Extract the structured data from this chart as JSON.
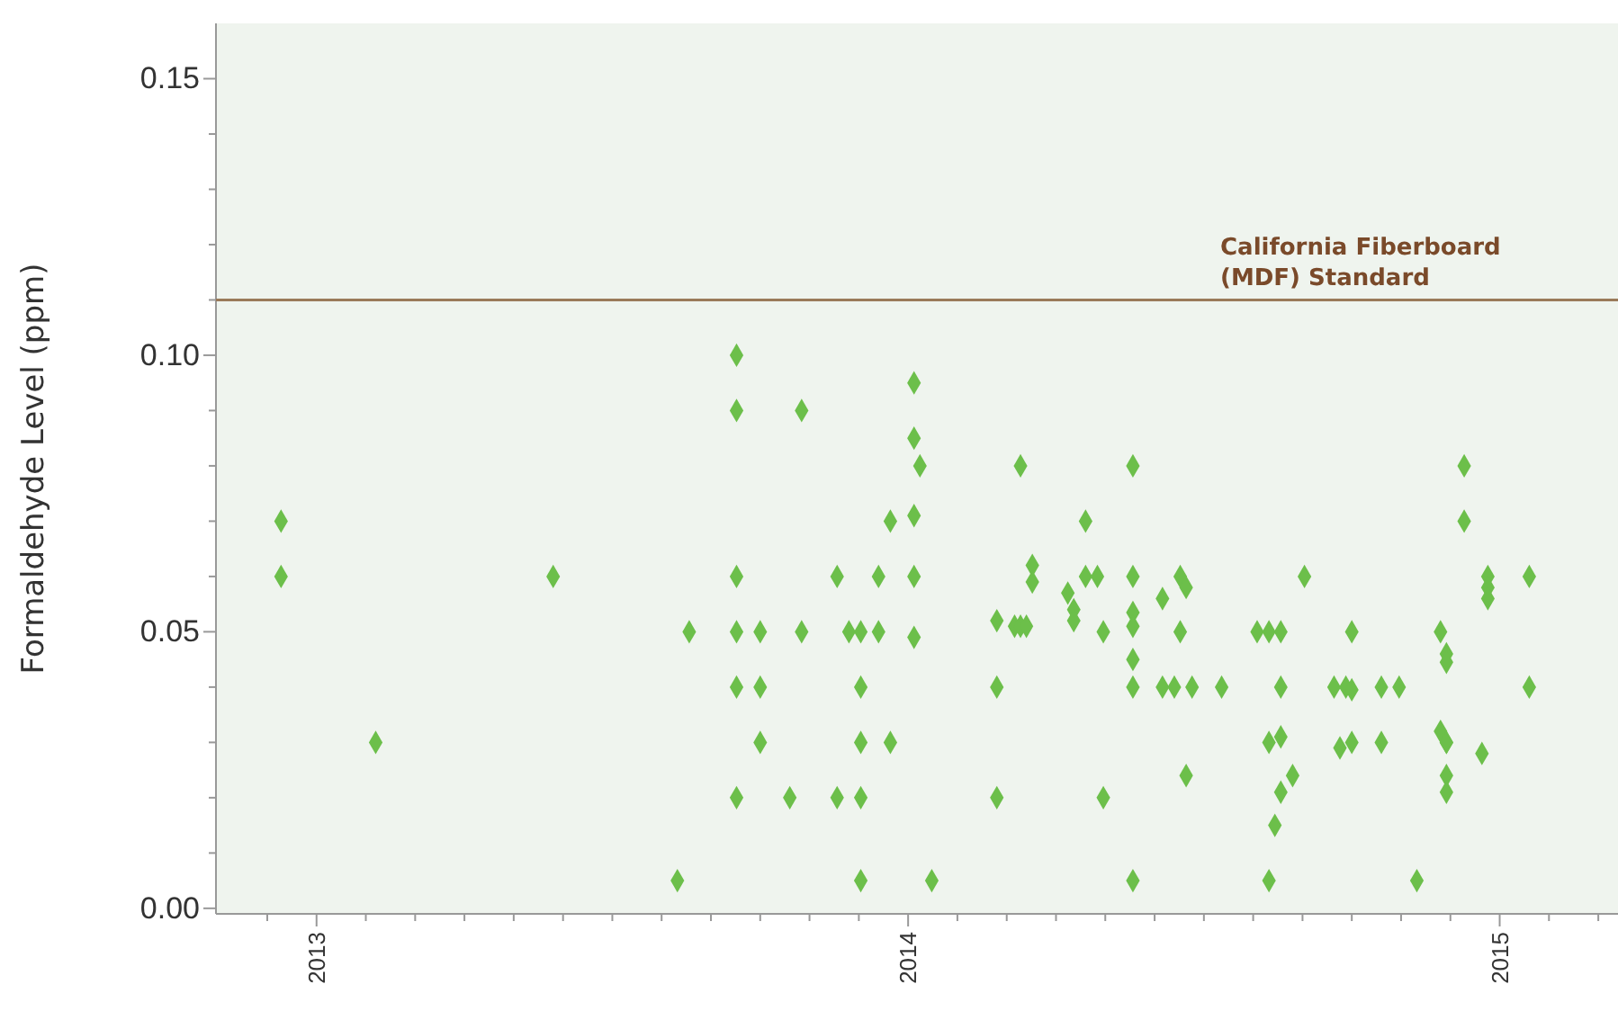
{
  "chart_data": {
    "type": "scatter",
    "ylabel": "Formaldehyde Level (ppm)",
    "marker": "diamond",
    "xlim": [
      2012.83,
      2015.2
    ],
    "ylim": [
      -0.001,
      0.16
    ],
    "xticks": [
      {
        "value": 2012.9167,
        "label": null
      },
      2013,
      {
        "value": 2013.0833,
        "label": null
      },
      {
        "value": 2013.1667,
        "label": null
      },
      {
        "value": 2013.25,
        "label": null
      },
      {
        "value": 2013.3333,
        "label": null
      },
      {
        "value": 2013.4167,
        "label": null
      },
      {
        "value": 2013.5,
        "label": null
      },
      {
        "value": 2013.5833,
        "label": null
      },
      {
        "value": 2013.6667,
        "label": null
      },
      {
        "value": 2013.75,
        "label": null
      },
      {
        "value": 2013.8333,
        "label": null
      },
      {
        "value": 2013.9167,
        "label": null
      },
      2014,
      {
        "value": 2014.0833,
        "label": null
      },
      {
        "value": 2014.1667,
        "label": null
      },
      {
        "value": 2014.25,
        "label": null
      },
      {
        "value": 2014.3333,
        "label": null
      },
      {
        "value": 2014.4167,
        "label": null
      },
      {
        "value": 2014.5,
        "label": null
      },
      {
        "value": 2014.5833,
        "label": null
      },
      {
        "value": 2014.6667,
        "label": null
      },
      {
        "value": 2014.75,
        "label": null
      },
      {
        "value": 2014.8333,
        "label": null
      },
      {
        "value": 2014.9167,
        "label": null
      },
      2015,
      {
        "value": 2015.0833,
        "label": null
      },
      {
        "value": 2015.1667,
        "label": null
      }
    ],
    "yticks": [
      {
        "value": 0,
        "label": "0.00"
      },
      {
        "value": 0.01,
        "label": null
      },
      {
        "value": 0.02,
        "label": null
      },
      {
        "value": 0.03,
        "label": null
      },
      {
        "value": 0.04,
        "label": null
      },
      0.05,
      {
        "value": 0.06,
        "label": null
      },
      {
        "value": 0.07,
        "label": null
      },
      {
        "value": 0.08,
        "label": null
      },
      {
        "value": 0.09,
        "label": null
      },
      {
        "value": 0.1,
        "label": "0.10"
      },
      {
        "value": 0.11,
        "label": null
      },
      {
        "value": 0.12,
        "label": null
      },
      {
        "value": 0.13,
        "label": null
      },
      {
        "value": 0.14,
        "label": null
      },
      0.15
    ],
    "ref_lines": [
      {
        "axis": "y",
        "value": 0.11,
        "label": "California Fiberboard\n(MDF) Standard",
        "color": "#9a7a5a"
      }
    ],
    "series": [
      {
        "color": "#6cbf4a",
        "x": [
          2012.94,
          2012.94,
          2013.1,
          2013.4,
          2013.61,
          2013.63,
          2013.71,
          2013.71,
          2013.71,
          2013.71,
          2013.71,
          2013.71,
          2013.75,
          2013.75,
          2013.75,
          2013.8,
          2013.82,
          2013.82,
          2013.88,
          2013.88,
          2013.9,
          2013.92,
          2013.92,
          2013.92,
          2013.92,
          2013.92,
          2013.95,
          2013.95,
          2013.97,
          2013.97,
          2014.01,
          2014.01,
          2014.01,
          2014.01,
          2014.01,
          2014.02,
          2014.04,
          2014.15,
          2014.15,
          2014.15,
          2014.18,
          2014.19,
          2014.19,
          2014.2,
          2014.21,
          2014.21,
          2014.27,
          2014.28,
          2014.28,
          2014.3,
          2014.3,
          2014.32,
          2014.33,
          2014.33,
          2014.38,
          2014.38,
          2014.38,
          2014.38,
          2014.38,
          2014.38,
          2014.38,
          2014.43,
          2014.45,
          2014.46,
          2014.47,
          2014.46,
          2014.43,
          2014.48,
          2014.47,
          2014.53,
          2014.59,
          2014.61,
          2014.63,
          2014.63,
          2014.61,
          2014.63,
          2014.63,
          2014.62,
          2014.61,
          2014.65,
          2014.67,
          2014.75,
          2014.72,
          2014.74,
          2014.75,
          2014.73,
          2014.75,
          2014.8,
          2014.83,
          2014.8,
          2014.86,
          2014.9,
          2014.91,
          2014.91,
          2014.9,
          2014.91,
          2014.91,
          2014.91,
          2014.91,
          2014.94,
          2014.94,
          2014.98,
          2014.98,
          2014.98,
          2014.97,
          2015.05,
          2015.05
        ],
        "values": [
          0.07,
          0.06,
          0.03,
          0.06,
          0.005,
          0.05,
          0.1,
          0.09,
          0.06,
          0.05,
          0.04,
          0.02,
          0.05,
          0.04,
          0.03,
          0.02,
          0.09,
          0.05,
          0.02,
          0.06,
          0.05,
          0.05,
          0.04,
          0.03,
          0.02,
          0.005,
          0.06,
          0.05,
          0.07,
          0.03,
          0.095,
          0.085,
          0.071,
          0.06,
          0.049,
          0.08,
          0.005,
          0.052,
          0.04,
          0.02,
          0.051,
          0.051,
          0.08,
          0.051,
          0.062,
          0.059,
          0.057,
          0.054,
          0.052,
          0.07,
          0.06,
          0.06,
          0.05,
          0.02,
          0.08,
          0.06,
          0.0535,
          0.051,
          0.045,
          0.04,
          0.005,
          0.056,
          0.04,
          0.06,
          0.058,
          0.05,
          0.04,
          0.04,
          0.024,
          0.04,
          0.05,
          0.05,
          0.05,
          0.04,
          0.03,
          0.031,
          0.021,
          0.015,
          0.005,
          0.024,
          0.06,
          0.05,
          0.04,
          0.04,
          0.0395,
          0.029,
          0.03,
          0.04,
          0.04,
          0.03,
          0.005,
          0.05,
          0.046,
          0.0445,
          0.032,
          0.03,
          0.03,
          0.024,
          0.021,
          0.08,
          0.07,
          0.06,
          0.058,
          0.056,
          0.028,
          0.06,
          0.04
        ]
      }
    ]
  }
}
